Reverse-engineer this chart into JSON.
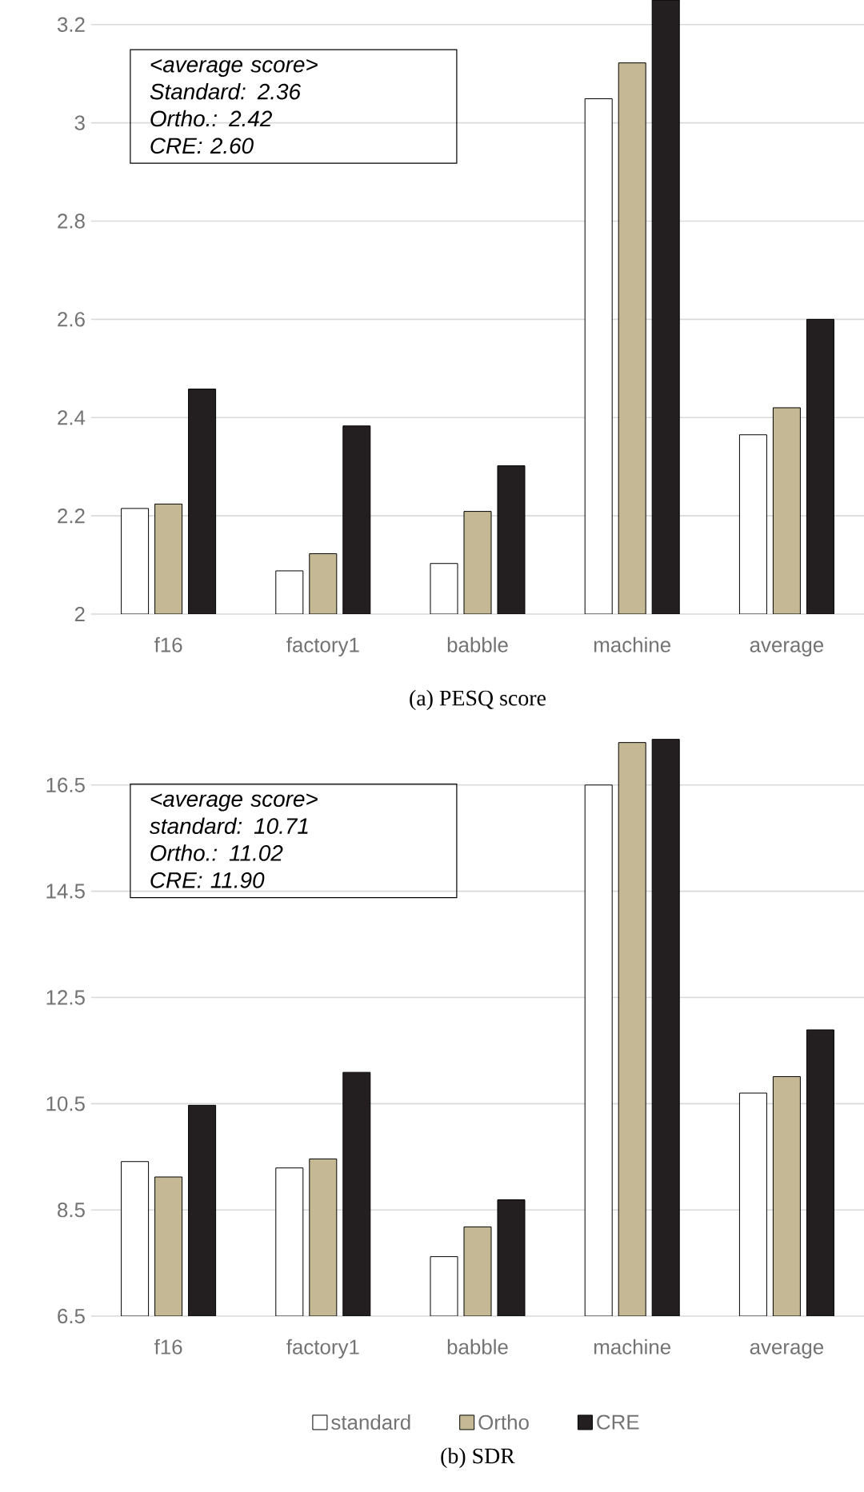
{
  "chart_data": [
    {
      "type": "bar",
      "categories": [
        "f16",
        "factory1",
        "babble",
        "machine",
        "average"
      ],
      "series": [
        {
          "color": "#ffffff",
          "values": [
            2.215,
            2.088,
            2.103,
            3.049,
            2.365
          ]
        },
        {
          "color": "#c4b994",
          "values": [
            2.224,
            2.123,
            2.209,
            3.122,
            2.42
          ]
        },
        {
          "color": "#231f20",
          "values": [
            2.458,
            2.383,
            2.302,
            3.25,
            2.6
          ]
        }
      ],
      "ylim": [
        2,
        3.25
      ],
      "yticks": [
        2,
        2.2,
        2.4,
        2.6,
        2.8,
        3,
        3.2
      ],
      "grid": "y",
      "xlabel": "(a) PESQ score",
      "annotations": [
        "<average score>",
        "Standard: 2.36",
        "Ortho.: 2.42",
        "CRE: 2.60"
      ]
    },
    {
      "type": "bar",
      "categories": [
        "f16",
        "factory1",
        "babble",
        "machine",
        "average"
      ],
      "series": [
        {
          "name": "standard",
          "color": "#ffffff",
          "values": [
            9.41,
            9.29,
            7.62,
            16.5,
            10.7
          ]
        },
        {
          "name": "Ortho",
          "color": "#c4b994",
          "values": [
            9.12,
            9.46,
            8.18,
            17.3,
            11.01
          ]
        },
        {
          "name": "CRE",
          "color": "#231f20",
          "values": [
            10.47,
            11.09,
            8.69,
            17.36,
            11.89
          ]
        }
      ],
      "ylim": [
        6.5,
        17.4
      ],
      "yticks": [
        6.5,
        8.5,
        10.5,
        12.5,
        14.5,
        16.5
      ],
      "grid": "y",
      "legend": "bottom",
      "xlabel": "(b) SDR",
      "annotations": [
        "<average score>",
        "standard: 10.71",
        "Ortho.: 11.02",
        "CRE: 11.90"
      ]
    }
  ]
}
